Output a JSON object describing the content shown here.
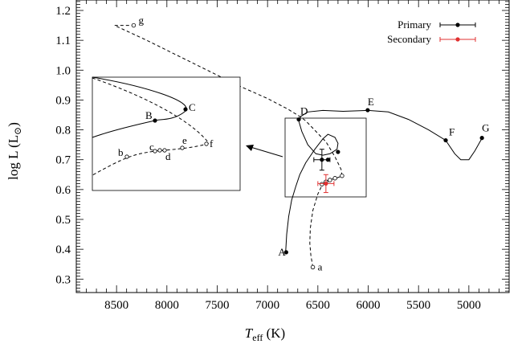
{
  "chart_data": {
    "type": "scatter",
    "xlabel_main": "T",
    "xlabel_sub": "eff",
    "xlabel_unit": " (K)",
    "ylabel_main": "log L (L",
    "ylabel_sun": "⊙",
    "ylabel_close": ")",
    "xlim": [
      8900,
      4600
    ],
    "ylim": [
      0.255,
      1.235
    ],
    "xticks": [
      {
        "v": 8500,
        "label": "8500"
      },
      {
        "v": 8000,
        "label": "8000"
      },
      {
        "v": 7500,
        "label": "7500"
      },
      {
        "v": 7000,
        "label": "7000"
      },
      {
        "v": 6500,
        "label": "6500"
      },
      {
        "v": 6000,
        "label": "6000"
      },
      {
        "v": 5500,
        "label": "5500"
      },
      {
        "v": 5000,
        "label": "5000"
      }
    ],
    "yticks": [
      {
        "v": 0.3,
        "label": "0.3"
      },
      {
        "v": 0.4,
        "label": "0.4"
      },
      {
        "v": 0.5,
        "label": "0.5"
      },
      {
        "v": 0.6,
        "label": "0.6"
      },
      {
        "v": 0.7,
        "label": "0.7"
      },
      {
        "v": 0.8,
        "label": "0.8"
      },
      {
        "v": 0.9,
        "label": "0.9"
      },
      {
        "v": 1.0,
        "label": "1.0"
      },
      {
        "v": 1.1,
        "label": "1.1"
      },
      {
        "v": 1.2,
        "label": "1.2"
      }
    ],
    "legend": {
      "placement": "top-right",
      "entries": [
        {
          "label": "Primary",
          "color": "#000000"
        },
        {
          "label": "Secondary",
          "color": "#e03030"
        }
      ]
    },
    "series": [
      {
        "name": "Primary",
        "style": "solid",
        "track": [
          [
            6820,
            0.39
          ],
          [
            6810,
            0.45
          ],
          [
            6790,
            0.51
          ],
          [
            6760,
            0.565
          ],
          [
            6720,
            0.61
          ],
          [
            6680,
            0.65
          ],
          [
            6620,
            0.69
          ],
          [
            6530,
            0.735
          ],
          [
            6450,
            0.77
          ],
          [
            6400,
            0.785
          ],
          [
            6330,
            0.775
          ],
          [
            6300,
            0.755
          ],
          [
            6310,
            0.735
          ],
          [
            6380,
            0.72
          ],
          [
            6450,
            0.715
          ],
          [
            6520,
            0.72
          ],
          [
            6600,
            0.75
          ],
          [
            6660,
            0.795
          ],
          [
            6690,
            0.83
          ],
          [
            6670,
            0.845
          ],
          [
            6600,
            0.86
          ],
          [
            6450,
            0.865
          ],
          [
            6250,
            0.862
          ],
          [
            6000,
            0.865
          ],
          [
            5800,
            0.86
          ],
          [
            5600,
            0.835
          ],
          [
            5400,
            0.8
          ],
          [
            5230,
            0.765
          ],
          [
            5140,
            0.72
          ],
          [
            5080,
            0.7
          ],
          [
            5000,
            0.7
          ],
          [
            4940,
            0.73
          ],
          [
            4870,
            0.772
          ]
        ],
        "points": [
          {
            "name": "A",
            "x": 6815,
            "y": 0.39
          },
          {
            "name": "D",
            "x": 6690,
            "y": 0.835
          },
          {
            "name": "E",
            "x": 6005,
            "y": 0.866
          },
          {
            "name": "F",
            "x": 5230,
            "y": 0.765
          },
          {
            "name": "G",
            "x": 4870,
            "y": 0.773
          },
          {
            "name": "",
            "x": 6300,
            "y": 0.726
          },
          {
            "name": "",
            "x": 6400,
            "y": 0.7
          }
        ]
      },
      {
        "name": "Secondary",
        "style": "dashed",
        "track": [
          [
            6550,
            0.34
          ],
          [
            6570,
            0.38
          ],
          [
            6580,
            0.42
          ],
          [
            6575,
            0.47
          ],
          [
            6550,
            0.53
          ],
          [
            6500,
            0.585
          ],
          [
            6450,
            0.62
          ],
          [
            6380,
            0.633
          ],
          [
            6320,
            0.638
          ],
          [
            6260,
            0.645
          ],
          [
            6270,
            0.668
          ],
          [
            6330,
            0.71
          ],
          [
            6420,
            0.76
          ],
          [
            6520,
            0.795
          ],
          [
            6620,
            0.83
          ],
          [
            6680,
            0.845
          ],
          [
            6800,
            0.87
          ],
          [
            7000,
            0.905
          ],
          [
            7300,
            0.95
          ],
          [
            7600,
            1.0
          ],
          [
            7900,
            1.05
          ],
          [
            8200,
            1.1
          ],
          [
            8520,
            1.15
          ],
          [
            8330,
            1.15
          ]
        ],
        "points": [
          {
            "name": "a",
            "x": 6550,
            "y": 0.34
          },
          {
            "name": "g",
            "x": 8330,
            "y": 1.15
          },
          {
            "name": "",
            "x": 6460,
            "y": 0.618
          },
          {
            "name": "",
            "x": 6420,
            "y": 0.626
          },
          {
            "name": "",
            "x": 6380,
            "y": 0.632
          },
          {
            "name": "",
            "x": 6330,
            "y": 0.638
          },
          {
            "name": "",
            "x": 6260,
            "y": 0.646
          }
        ]
      },
      {
        "name": "Primary",
        "style": "errorbar",
        "points": [
          {
            "x": 6460,
            "y": 0.7,
            "xerr": 80,
            "yerr": 0.035
          }
        ]
      },
      {
        "name": "Secondary",
        "style": "errorbar",
        "points": [
          {
            "x": 6420,
            "y": 0.62,
            "xerr": 80,
            "yerr": 0.03
          }
        ]
      }
    ],
    "inset": {
      "labels_upper": [
        "B",
        "C"
      ],
      "labels_lower": [
        "b",
        "c",
        "d",
        "e",
        "f"
      ]
    }
  }
}
